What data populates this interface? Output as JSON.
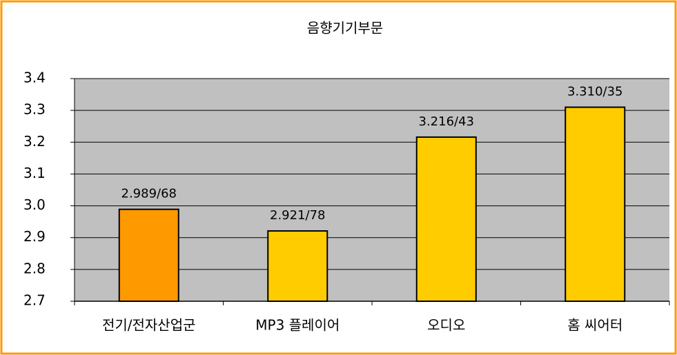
{
  "chart_data": {
    "type": "bar",
    "title": "음향기기부문",
    "categories": [
      "전기/전자산업군",
      "MP3 플레이어",
      "오디오",
      "홈 씨어터"
    ],
    "values": [
      2.989,
      2.921,
      3.216,
      3.31
    ],
    "value_labels": [
      "2.989/68",
      "2.921/78",
      "3.216/43",
      "3.310/35"
    ],
    "colors": [
      "#ff9900",
      "#ffcc00",
      "#ffcc00",
      "#ffcc00"
    ],
    "ylim": [
      2.7,
      3.4
    ],
    "yticks": [
      2.7,
      2.8,
      2.9,
      {
        "value": 3,
        "label": "3.0"
      },
      3.1,
      3.2,
      3.3,
      3.4
    ],
    "grid": true
  }
}
